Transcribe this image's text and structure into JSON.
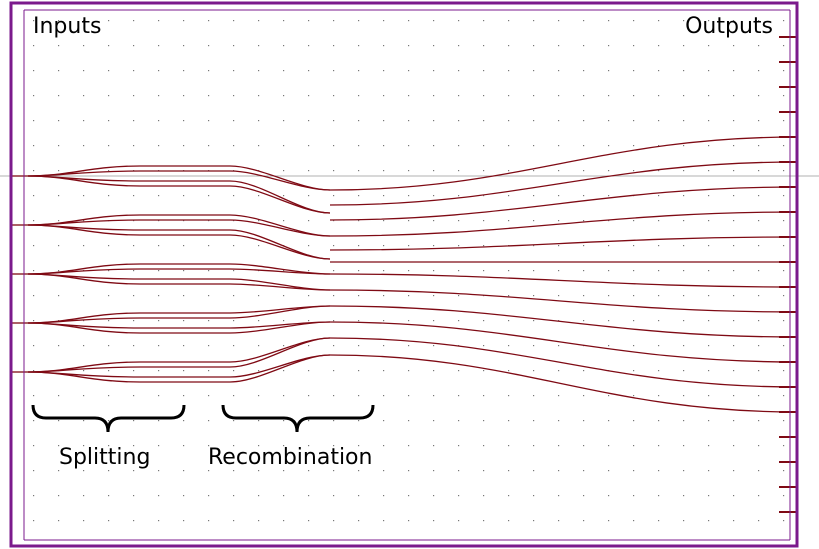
{
  "labels": {
    "inputs": "Inputs",
    "outputs": "Outputs",
    "splitting": "Splitting",
    "recombination": "Recombination"
  },
  "colors": {
    "frame": "#7b1a8c",
    "waveguide": "#7f0a14",
    "grid_dot": "#777777",
    "crosshair": "#b0b0b0",
    "brace": "#000000"
  },
  "diagram": {
    "input_ports": 5,
    "output_ports": 11,
    "sections": [
      "splitting",
      "recombination"
    ]
  }
}
